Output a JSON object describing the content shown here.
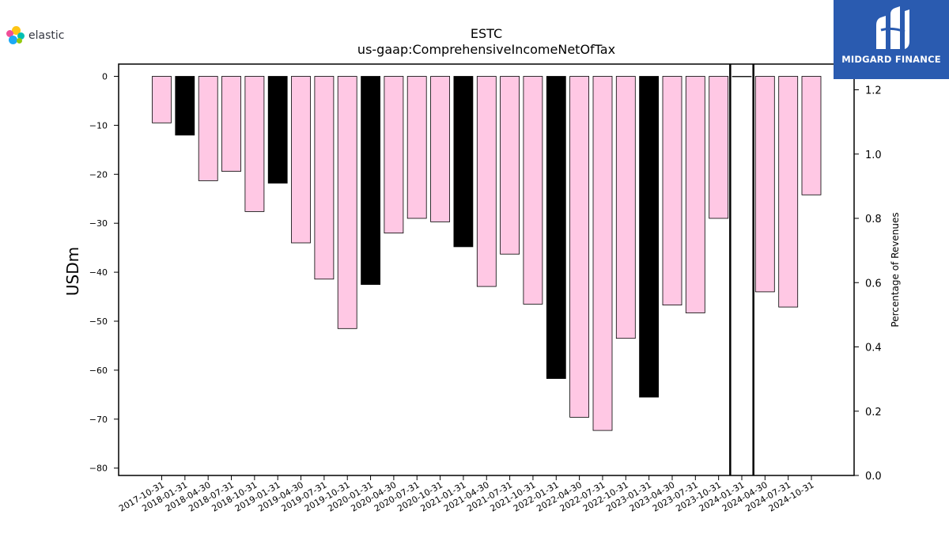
{
  "logos": {
    "left_text": "elastic",
    "right_text": "MIDGARD FINANCE"
  },
  "colors": {
    "pink": "#ffc8e4",
    "black": "#000000",
    "brand_blue": "#2a5bb0"
  },
  "chart_data": {
    "type": "bar",
    "title": "ESTC",
    "subtitle": "us-gaap:ComprehensiveIncomeNetOfTax",
    "ylabel": "USDm",
    "y2label": "Percentage of Revenues",
    "ylim": [
      -81.5,
      2.5
    ],
    "y2lim": [
      0.0,
      1.28
    ],
    "yticks": [
      0,
      -10,
      -20,
      -30,
      -40,
      -50,
      -60,
      -70,
      -80
    ],
    "y2ticks": [
      "0.0",
      "0.2",
      "0.4",
      "0.6",
      "0.8",
      "1.0",
      "1.2"
    ],
    "categories": [
      "2017-10-31",
      "2018-01-31",
      "2018-04-30",
      "2018-07-31",
      "2018-10-31",
      "2019-01-31",
      "2019-04-30",
      "2019-07-31",
      "2019-10-31",
      "2020-01-31",
      "2020-04-30",
      "2020-07-31",
      "2020-10-31",
      "2021-01-31",
      "2021-04-30",
      "2021-07-31",
      "2021-10-31",
      "2022-01-31",
      "2022-04-30",
      "2022-07-31",
      "2022-10-31",
      "2023-01-31",
      "2023-04-30",
      "2023-07-31",
      "2023-10-31",
      "2024-01-31",
      "2024-04-30",
      "2024-07-31",
      "2024-10-31"
    ],
    "values": [
      -9.5,
      -12.0,
      -21.3,
      -19.4,
      -27.6,
      -21.8,
      -34.0,
      -41.4,
      -51.5,
      -42.5,
      -32.0,
      -29.0,
      -29.7,
      -34.8,
      -42.9,
      -36.3,
      -46.5,
      -61.7,
      -69.6,
      -72.3,
      -53.5,
      -65.5,
      -46.7,
      -48.3,
      -29.0,
      0.0,
      -44.0,
      -47.1,
      -24.2
    ],
    "bar_colors": [
      "pink",
      "black",
      "pink",
      "pink",
      "pink",
      "black",
      "pink",
      "pink",
      "pink",
      "black",
      "pink",
      "pink",
      "pink",
      "black",
      "pink",
      "pink",
      "pink",
      "black",
      "pink",
      "pink",
      "pink",
      "black",
      "pink",
      "pink",
      "pink",
      "black",
      "pink",
      "pink",
      "pink"
    ],
    "marker_lines": [
      "2023-10-31",
      "2024-01-31"
    ],
    "grid": false,
    "legend": "none"
  }
}
